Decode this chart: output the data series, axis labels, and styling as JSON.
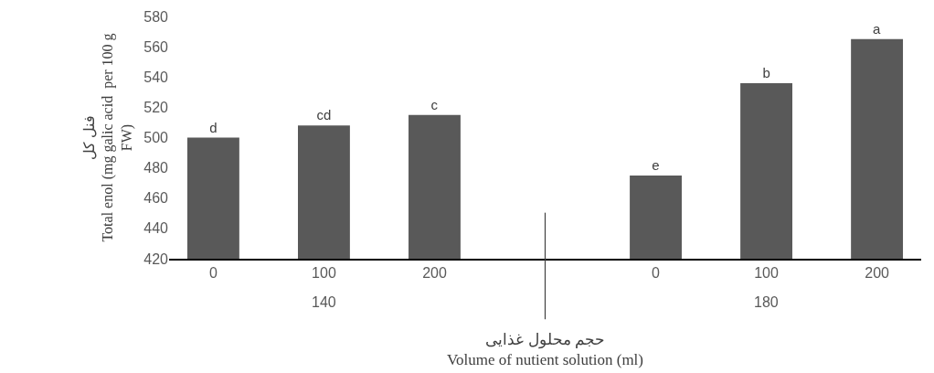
{
  "chart_data": {
    "type": "bar",
    "categories": [
      "0",
      "100",
      "200",
      null,
      "0",
      "100",
      "200"
    ],
    "values": [
      500,
      508,
      515,
      null,
      475,
      536,
      565
    ],
    "value_labels": [
      "d",
      "cd",
      "c",
      null,
      "e",
      "b",
      "a"
    ],
    "color": "#595959",
    "ylim": [
      420,
      580
    ],
    "yticks": [
      420,
      440,
      460,
      480,
      500,
      520,
      540,
      560,
      580
    ],
    "ylabel": "فنل کل\nTotal enol (mg galic acid  per 100 g\nFW)",
    "xlabel": "حجم محلول غذایی\nVolume of nutient solution (ml)",
    "annotations": [
      "140",
      "180"
    ]
  }
}
